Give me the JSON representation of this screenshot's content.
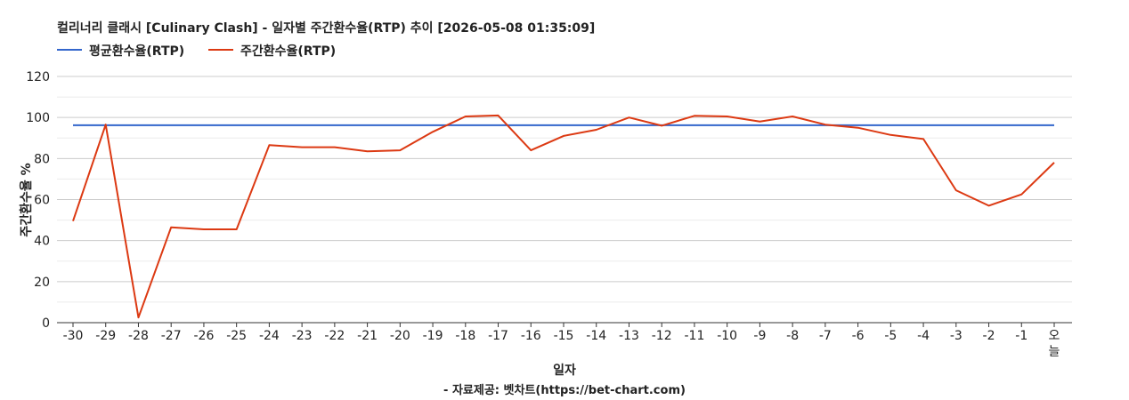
{
  "chart_data": {
    "type": "line",
    "title": "컬리너리 클래시 [Culinary Clash] - 일자별 주간환수율(RTP) 추이 [2026-05-08 01:35:09]",
    "xlabel": "일자",
    "ylabel": "주간환수율 %",
    "source": "- 자료제공: 벳차트(https://bet-chart.com)",
    "ylim": [
      0,
      120
    ],
    "yticks": [
      0,
      20,
      40,
      60,
      80,
      100,
      120
    ],
    "grid": true,
    "legend_position": "top-left",
    "categories": [
      "-30",
      "-29",
      "-28",
      "-27",
      "-26",
      "-25",
      "-24",
      "-23",
      "-22",
      "-21",
      "-20",
      "-19",
      "-18",
      "-17",
      "-16",
      "-15",
      "-14",
      "-13",
      "-12",
      "-11",
      "-10",
      "-9",
      "-8",
      "-7",
      "-6",
      "-5",
      "-4",
      "-3",
      "-2",
      "-1",
      "오늘"
    ],
    "series": [
      {
        "name": "평균환수율(RTP)",
        "color": "#3366cc",
        "values": [
          96.2,
          96.2,
          96.2,
          96.2,
          96.2,
          96.2,
          96.2,
          96.2,
          96.2,
          96.2,
          96.2,
          96.2,
          96.2,
          96.2,
          96.2,
          96.2,
          96.2,
          96.2,
          96.2,
          96.2,
          96.2,
          96.2,
          96.2,
          96.2,
          96.2,
          96.2,
          96.2,
          96.2,
          96.2,
          96.2,
          96.2
        ]
      },
      {
        "name": "주간환수율(RTP)",
        "color": "#dc3912",
        "values": [
          49.5,
          96.5,
          2.5,
          46.5,
          45.5,
          45.5,
          86.5,
          85.5,
          85.5,
          83.5,
          84,
          93,
          100.5,
          101,
          84,
          91,
          94,
          100,
          96,
          100.8,
          100.5,
          98,
          100.5,
          96.5,
          95,
          91.5,
          89.5,
          64.5,
          57,
          62.5,
          78
        ]
      }
    ]
  }
}
